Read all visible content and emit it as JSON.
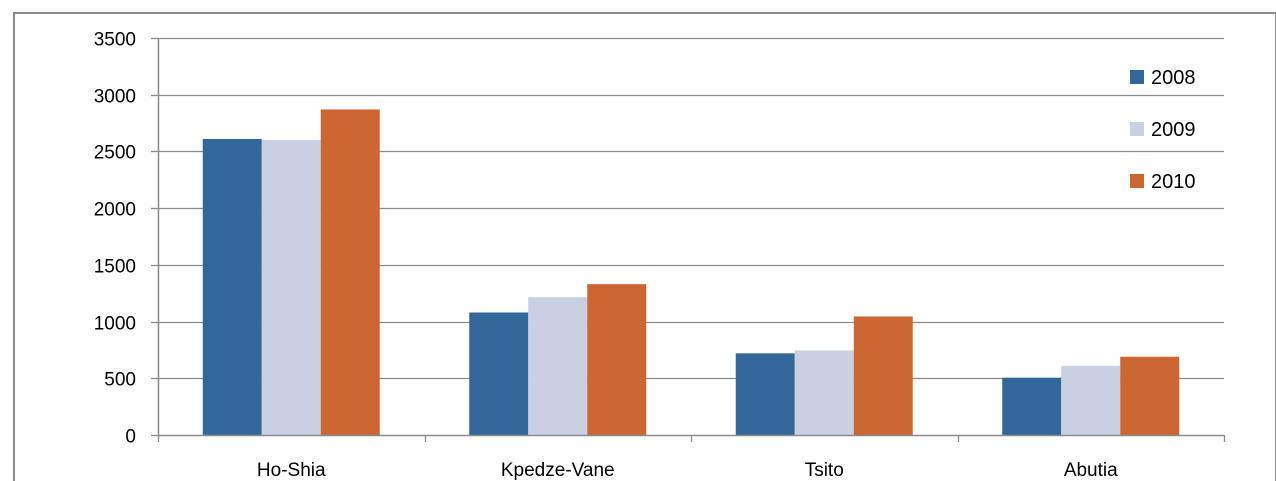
{
  "chart_data": {
    "type": "bar",
    "title": "",
    "xlabel": "",
    "ylabel": "",
    "categories": [
      "Ho-Shia",
      "Kpedze-Vane",
      "Tsito",
      "Abutia"
    ],
    "series": [
      {
        "name": "2008",
        "values": [
          2610,
          1080,
          720,
          505
        ],
        "color": "#336699"
      },
      {
        "name": "2009",
        "values": [
          2600,
          1215,
          745,
          610
        ],
        "color": "#c9d0e4"
      },
      {
        "name": "2010",
        "values": [
          2870,
          1330,
          1045,
          690
        ],
        "color": "#cc6633"
      }
    ],
    "ylim": [
      0,
      3500
    ],
    "yticks": [
      0,
      500,
      1000,
      1500,
      2000,
      2500,
      3000,
      3500
    ],
    "grid": true,
    "legend": "top-right"
  }
}
